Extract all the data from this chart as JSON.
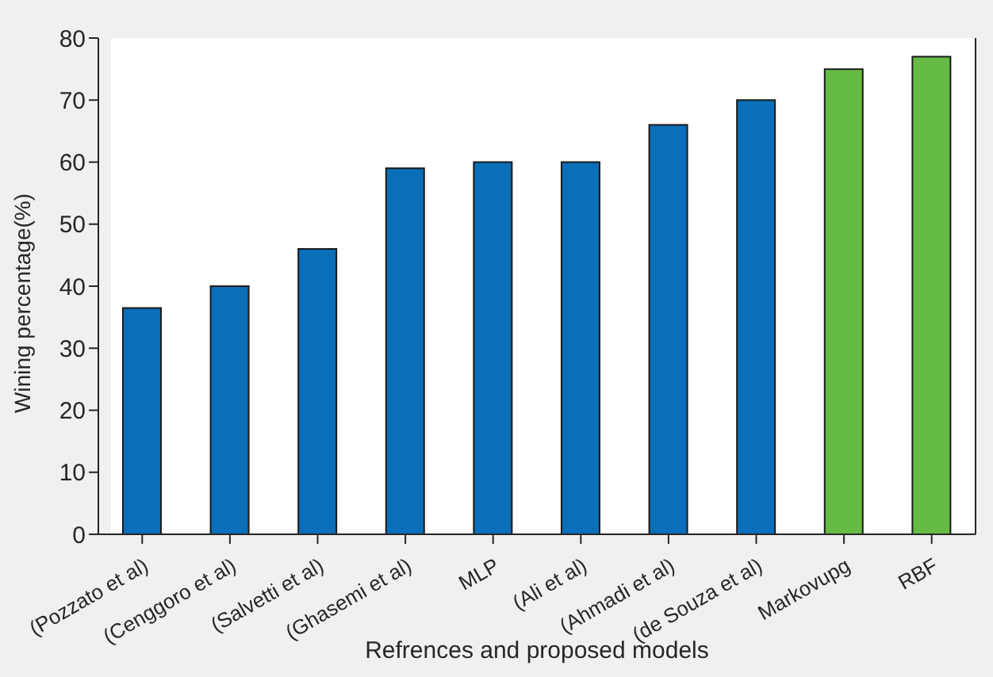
{
  "chart_data": {
    "type": "bar",
    "xlabel": "Refrences and proposed models",
    "ylabel": "Wining percentage(%)",
    "categories": [
      "(Pozzato et al)",
      "(Cenggoro et al)",
      "(Salvetti et al)",
      "(Ghasemi et al)",
      "MLP",
      "(Ali et al)",
      "(Ahmadi et al)",
      "(de Souza et al)",
      "Markovupg",
      "RBF"
    ],
    "values": [
      36.5,
      40,
      46,
      59,
      60,
      60,
      66,
      70,
      75,
      77
    ],
    "colors": [
      "#0a6eb8",
      "#0a6eb8",
      "#0a6eb8",
      "#0a6eb8",
      "#0a6eb8",
      "#0a6eb8",
      "#0a6eb8",
      "#0a6eb8",
      "#66bb44",
      "#66bb44"
    ],
    "ylim": [
      0,
      80
    ],
    "yticks": [
      0,
      10,
      20,
      30,
      40,
      50,
      60,
      70,
      80
    ],
    "grid": false,
    "legend": false
  }
}
